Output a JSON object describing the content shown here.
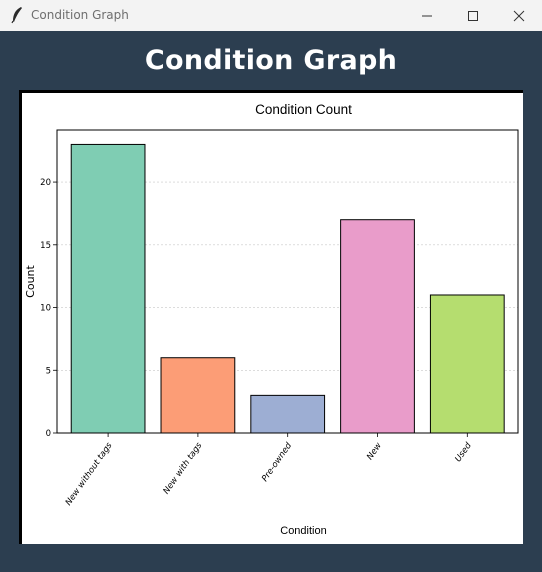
{
  "window": {
    "title": "Condition Graph",
    "controls": [
      "minimize-icon",
      "maximize-icon",
      "close-icon"
    ]
  },
  "page": {
    "heading": "Condition Graph"
  },
  "chart_data": {
    "type": "bar",
    "title": "Condition Count",
    "xlabel": "Condition",
    "ylabel": "Count",
    "categories": [
      "New without tags",
      "New with tags",
      "Pre-owned",
      "New",
      "Used"
    ],
    "values": [
      23,
      6,
      3,
      17,
      11
    ],
    "colors": [
      "#7fcdb3",
      "#fc9d76",
      "#9daed3",
      "#e99cca",
      "#b5dd6f"
    ],
    "ylim": [
      0,
      24.15
    ],
    "yticks": [
      0,
      5,
      10,
      15,
      20
    ],
    "grid": "y-dashed",
    "legend": "none"
  }
}
